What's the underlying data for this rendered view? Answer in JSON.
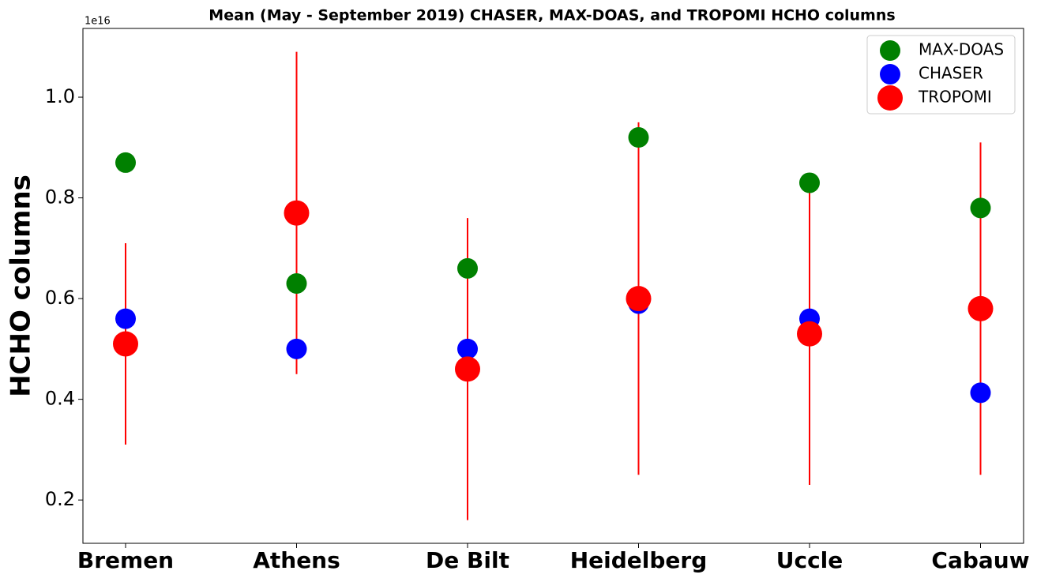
{
  "chart_data": {
    "type": "scatter",
    "title": "Mean (May - September 2019) CHASER, MAX-DOAS, and TROPOMI HCHO columns",
    "y_label": "HCHO columns",
    "y_offset_label": "1e16",
    "categories": [
      "Bremen",
      "Athens",
      "De Bilt",
      "Heidelberg",
      "Uccle",
      "Cabauw"
    ],
    "series": [
      {
        "name": "MAX-DOAS",
        "color": "#008000",
        "values": [
          0.87,
          0.63,
          0.66,
          0.92,
          0.83,
          0.78
        ]
      },
      {
        "name": "CHASER",
        "color": "#0000ff",
        "values": [
          0.56,
          0.5,
          0.5,
          0.59,
          0.56,
          0.413
        ]
      },
      {
        "name": "TROPOMI",
        "color": "#ff0000",
        "values": [
          0.51,
          0.77,
          0.46,
          0.6,
          0.53,
          0.58
        ],
        "errors": [
          0.2,
          0.32,
          0.3,
          0.35,
          0.3,
          0.33
        ]
      }
    ],
    "ylim": [
      0.114,
      1.1365
    ],
    "yticks": [
      0.2,
      0.4,
      0.6,
      0.8,
      {
        "value": 1,
        "label": "1.0"
      }
    ],
    "legend": "upper right"
  }
}
